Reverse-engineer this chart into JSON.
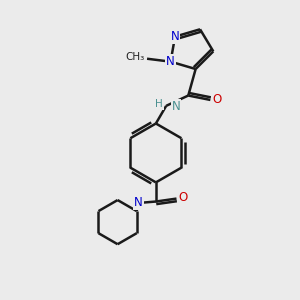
{
  "bg_color": "#ebebeb",
  "atom_color_N": "#0000cc",
  "atom_color_O": "#cc0000",
  "atom_color_NH": "#4a9090",
  "bond_color": "#1a1a1a",
  "bond_width": 1.8,
  "figsize": [
    3.0,
    3.0
  ],
  "dpi": 100,
  "xlim": [
    0,
    10
  ],
  "ylim": [
    0,
    10
  ]
}
